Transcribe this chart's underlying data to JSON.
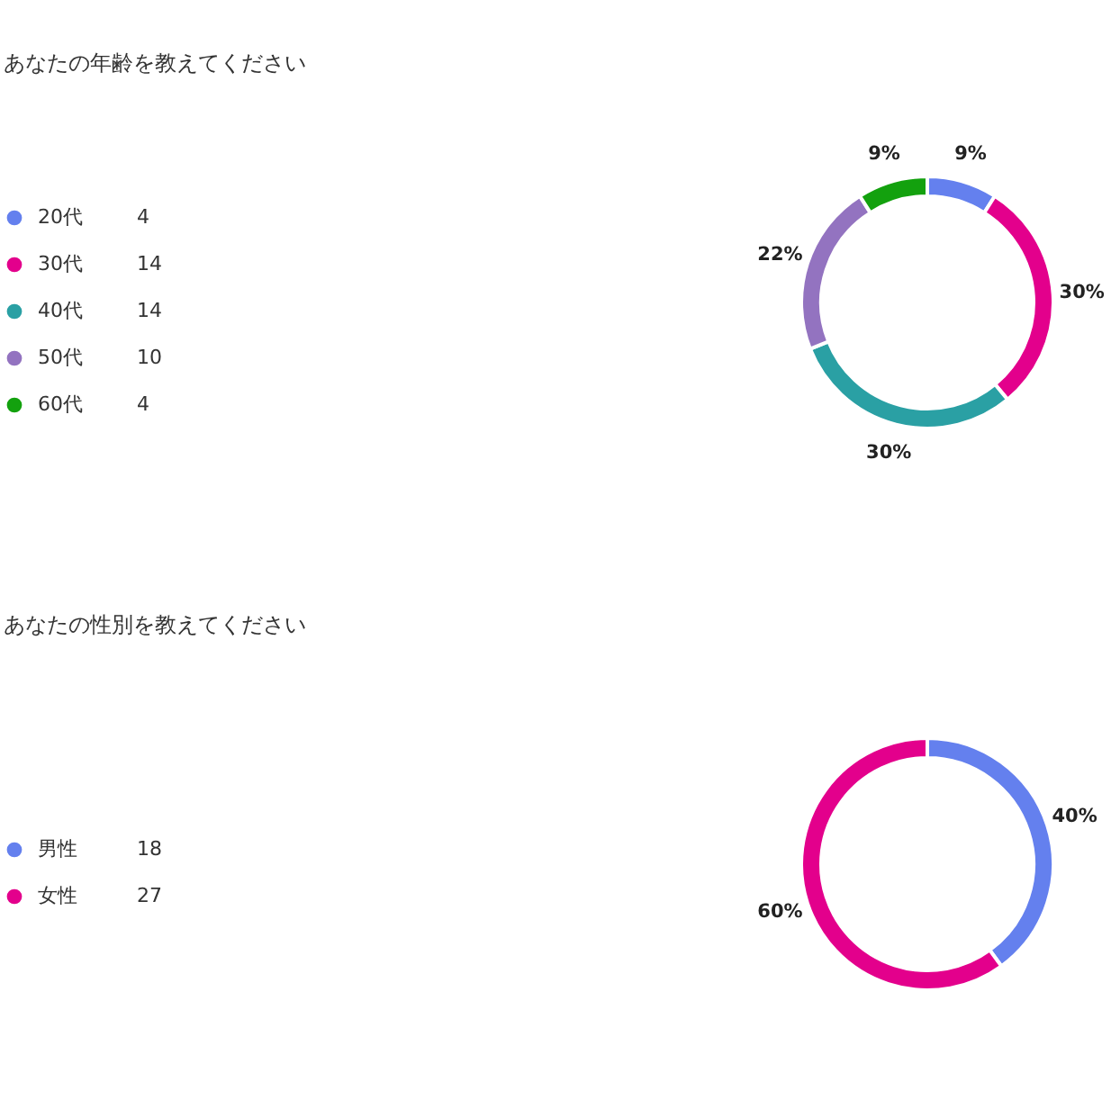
{
  "chart_data": [
    {
      "type": "donut",
      "title": "あなたの年齢を教えてください",
      "categories": [
        "20代",
        "30代",
        "40代",
        "50代",
        "60代"
      ],
      "values": [
        9,
        30,
        30,
        22,
        9
      ],
      "colors": [
        "#6480ee",
        "#e3008c",
        "#2aa0a4",
        "#9373c0",
        "#13a10e"
      ],
      "value_labels": [
        "9%",
        "30%",
        "30%",
        "22%",
        "9%"
      ],
      "annotations": [
        "4",
        "14",
        "14",
        "10",
        "4"
      ],
      "legend": "left"
    },
    {
      "type": "donut",
      "title": "あなたの性別を教えてください",
      "categories": [
        "男性",
        "女性"
      ],
      "values": [
        40,
        60
      ],
      "colors": [
        "#6480ee",
        "#e3008c"
      ],
      "value_labels": [
        "40%",
        "60%"
      ],
      "annotations": [
        "18",
        "27"
      ],
      "legend": "left"
    }
  ]
}
